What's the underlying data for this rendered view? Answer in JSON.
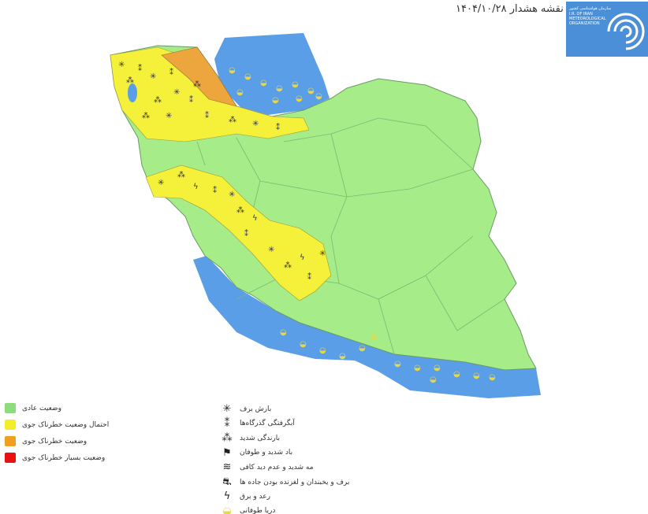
{
  "title": "نقشه هشدار ۱۴۰۴/۱۰/۲۸",
  "logo": {
    "text_fa": "سازمان هواشناسی کشور",
    "line1": "I.R. OF IRAN",
    "line2": "METEOROLOGICAL",
    "line3": "ORGANIZATION",
    "color": "#4a8fd8"
  },
  "map": {
    "land_normal": "#a6ec88",
    "land_yellow": "#f5f03a",
    "land_orange": "#eda63d",
    "sea": "#5a9ee8",
    "border": "#6a9a66"
  },
  "status_legend": [
    {
      "label": "وضعیت عادی",
      "color": "#8fdc7e"
    },
    {
      "label": "احتمال وضعیت خطرناک جوی",
      "color": "#f2ef2a"
    },
    {
      "label": "وضعیت خطرناک جوی",
      "color": "#f0a020"
    },
    {
      "label": "وضعیت بسیار خطرناک جوی",
      "color": "#e81010"
    }
  ],
  "hazard_legend": [
    {
      "label": "بارش برف",
      "icon": "snowflake-icon",
      "glyph": "✳"
    },
    {
      "label": "آبگرفتگی گذرگاه‌ها",
      "icon": "flooding-icon",
      "glyph": "⁑"
    },
    {
      "label": "بارندگی شدید",
      "icon": "heavy-rain-icon",
      "glyph": "⁂"
    },
    {
      "label": "باد شدید و طوفان",
      "icon": "wind-icon",
      "glyph": "⚑"
    },
    {
      "label": "مه شدید و عدم دید کافی",
      "icon": "fog-icon",
      "glyph": "≋"
    },
    {
      "label": "برف و یخبندان و لغزنده بودن جاده ها",
      "icon": "icy-road-icon",
      "glyph": "⛐"
    },
    {
      "label": "رعد و برق",
      "icon": "lightning-icon",
      "glyph": "ϟ"
    },
    {
      "label": "دریا طوفانی",
      "icon": "stormy-sea-icon",
      "glyph": "◒"
    }
  ]
}
